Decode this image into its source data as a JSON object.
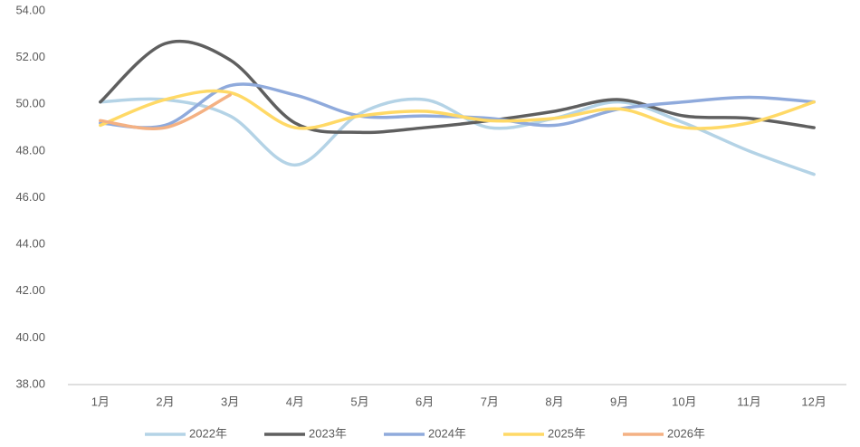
{
  "chart_data": {
    "type": "line",
    "categories": [
      "1月",
      "2月",
      "3月",
      "4月",
      "5月",
      "6月",
      "7月",
      "8月",
      "9月",
      "10月",
      "11月",
      "12月"
    ],
    "series": [
      {
        "name": "2022年",
        "color": "#b4d3e6",
        "values": [
          50.1,
          50.2,
          49.5,
          47.4,
          49.6,
          50.2,
          49.0,
          49.4,
          50.1,
          49.2,
          48.0,
          47.0
        ]
      },
      {
        "name": "2023年",
        "color": "#5f5f5f",
        "values": [
          50.1,
          52.6,
          51.9,
          49.2,
          48.8,
          49.0,
          49.3,
          49.7,
          50.2,
          49.5,
          49.4,
          49.0
        ]
      },
      {
        "name": "2024年",
        "color": "#8faadc",
        "values": [
          49.2,
          49.1,
          50.8,
          50.4,
          49.5,
          49.5,
          49.4,
          49.1,
          49.8,
          50.1,
          50.3,
          50.1
        ]
      },
      {
        "name": "2025年",
        "color": "#ffd966",
        "values": [
          49.1,
          50.2,
          50.5,
          49.0,
          49.5,
          49.7,
          49.3,
          49.4,
          49.8,
          49.0,
          49.2,
          50.1
        ]
      },
      {
        "name": "2026年",
        "color": "#f4b183",
        "values": [
          49.3,
          49.0,
          50.4,
          null,
          null,
          null,
          null,
          null,
          null,
          null,
          null,
          null
        ]
      }
    ],
    "ylim": [
      38,
      54
    ],
    "yticks": [
      {
        "value": 38,
        "label": "38.00"
      },
      {
        "value": 40,
        "label": "40.00"
      },
      {
        "value": 42,
        "label": "42.00"
      },
      {
        "value": 44,
        "label": "44.00"
      },
      {
        "value": 46,
        "label": "46.00"
      },
      {
        "value": 48,
        "label": "48.00"
      },
      {
        "value": 50,
        "label": "50.00"
      },
      {
        "value": 52,
        "label": "52.00"
      },
      {
        "value": 54,
        "label": "54.00"
      }
    ],
    "legend": "bottom"
  }
}
